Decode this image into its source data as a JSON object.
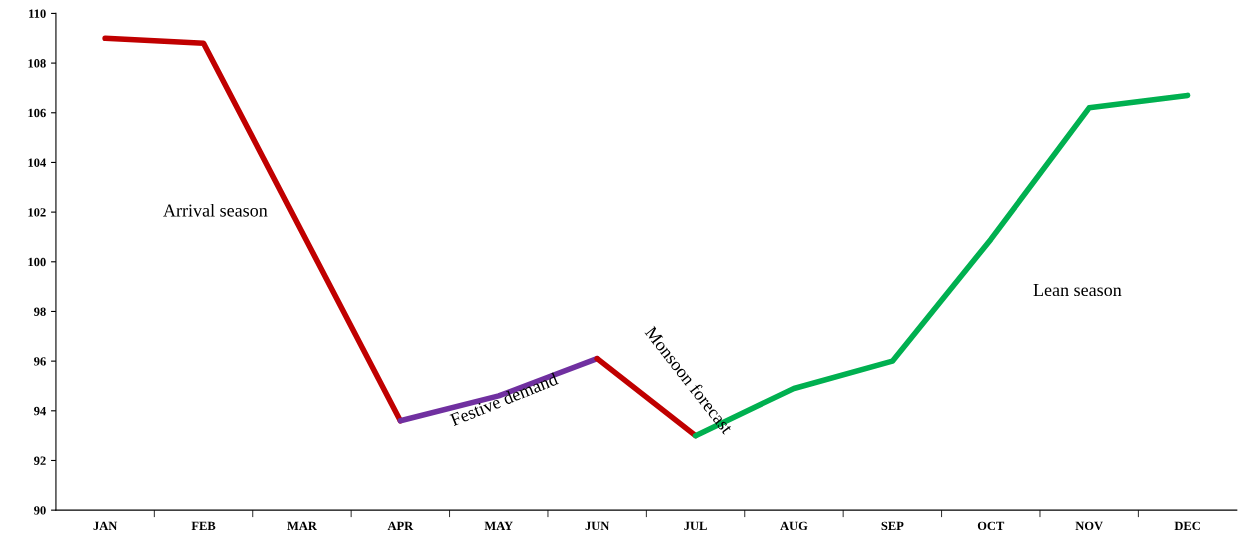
{
  "chart_data": {
    "type": "line",
    "categories": [
      "JAN",
      "FEB",
      "MAR",
      "APR",
      "MAY",
      "JUN",
      "JUL",
      "AUG",
      "SEP",
      "OCT",
      "NOV",
      "DEC"
    ],
    "series": [
      {
        "color": "#c00000",
        "values": [
          109.0,
          108.8,
          101.2,
          93.6,
          null,
          null,
          null,
          null,
          null,
          null,
          null,
          null
        ]
      },
      {
        "color": "#7030a0",
        "values": [
          null,
          null,
          null,
          93.6,
          94.6,
          96.1,
          null,
          null,
          null,
          null,
          null,
          null
        ]
      },
      {
        "color": "#c00000",
        "values": [
          null,
          null,
          null,
          null,
          null,
          96.1,
          93.0,
          null,
          null,
          null,
          null,
          null
        ]
      },
      {
        "color": "#00b050",
        "values": [
          null,
          null,
          null,
          null,
          null,
          null,
          93.0,
          94.9,
          96.0,
          100.9,
          106.2,
          106.7
        ]
      }
    ],
    "ylim": [
      90,
      110
    ],
    "yticks": [
      90,
      92,
      94,
      96,
      98,
      100,
      102,
      104,
      106,
      108,
      110
    ],
    "grid": false,
    "marker": "none",
    "line_style": "solid",
    "annotations": [
      "Arrival season",
      "Festive demand",
      "Monsoon forecast",
      "Lean season"
    ]
  }
}
